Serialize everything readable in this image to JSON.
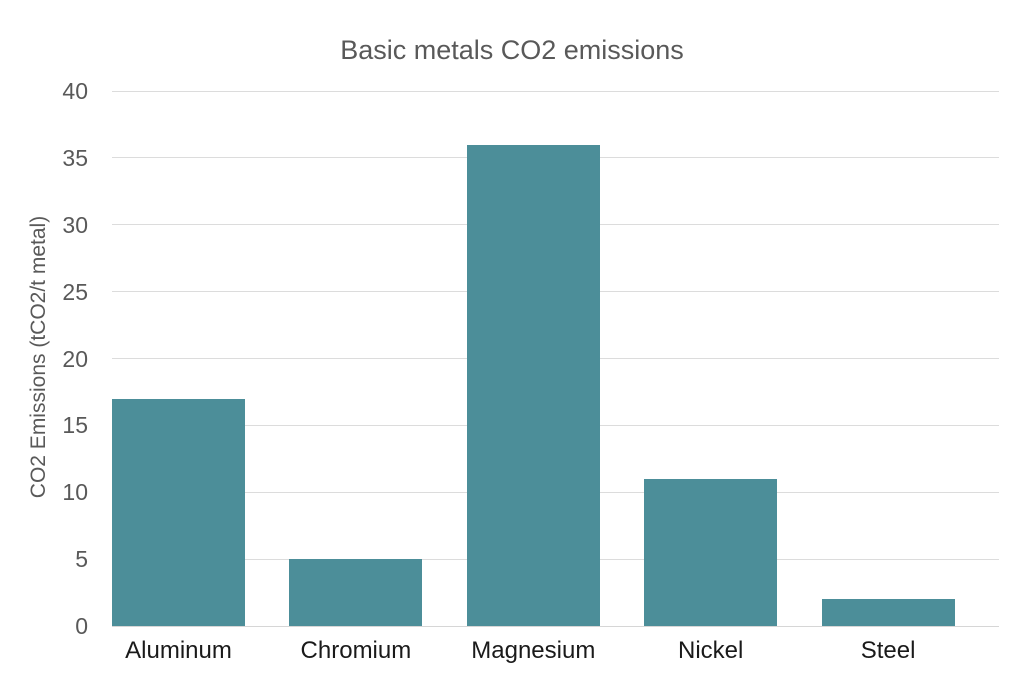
{
  "chart_data": {
    "type": "bar",
    "title": "Basic metals CO2 emissions",
    "categories": [
      "Aluminum",
      "Chromium",
      "Magnesium",
      "Nickel",
      "Steel"
    ],
    "values": [
      17,
      5,
      36,
      11,
      2
    ],
    "xlabel": "",
    "ylabel": "CO2 Emissions (tCO2/t metal)",
    "ylim": [
      0,
      40
    ],
    "ytick_interval": 5,
    "ytick_labels": [
      "0",
      "5",
      "10",
      "15",
      "20",
      "25",
      "30",
      "35",
      "40"
    ],
    "grid": true,
    "legend": false,
    "colors": {
      "bar": "#4C8E99",
      "gridline": "#DCDCDC",
      "axis_line": "#D6D6D6",
      "title_text": "#595959",
      "tick_text": "#595959",
      "category_text": "#1A1A1A",
      "background": "#FFFFFF"
    }
  }
}
